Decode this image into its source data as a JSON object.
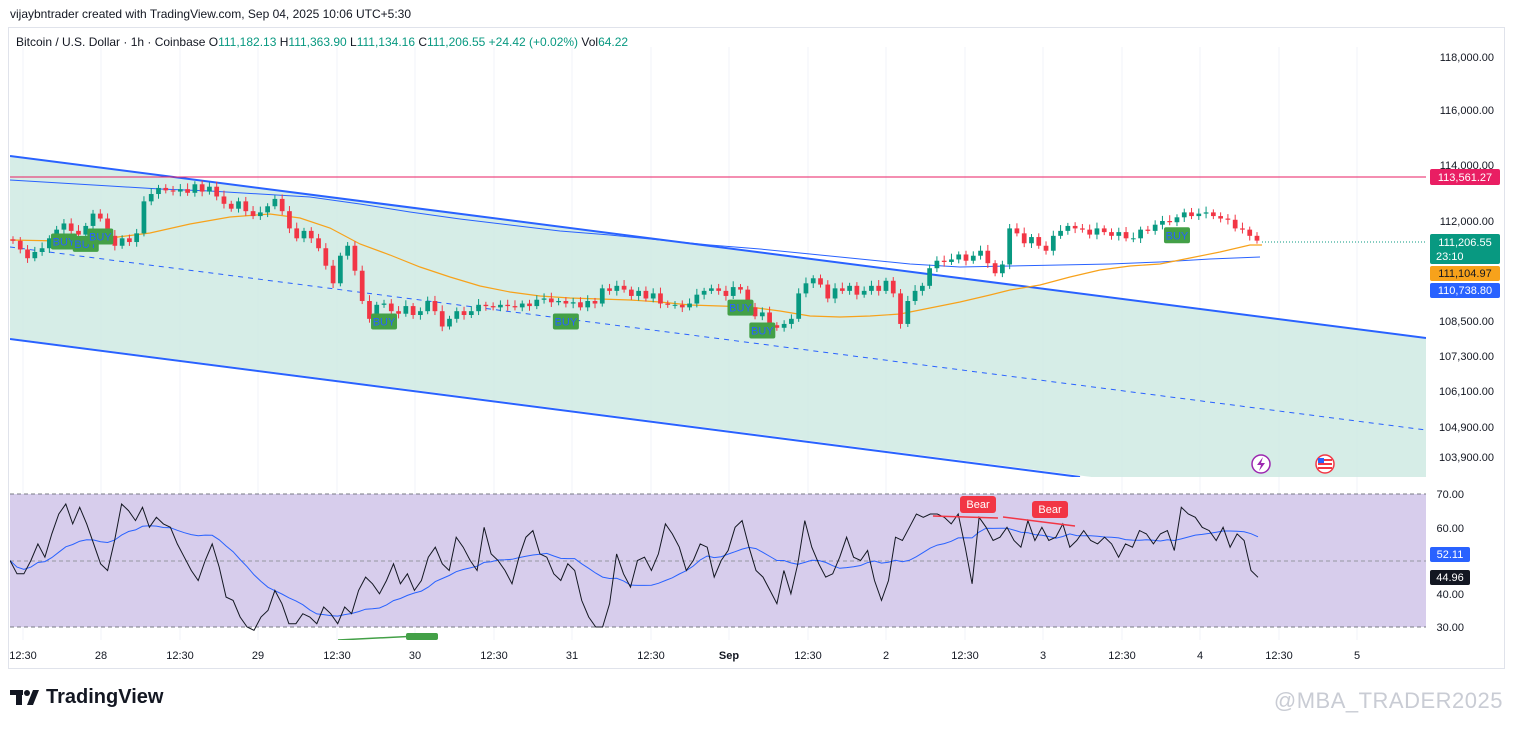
{
  "header": {
    "text": "vijaybntrader created with TradingView.com, Sep 04, 2025 10:06 UTC+5:30"
  },
  "legend": {
    "symbol": "Bitcoin / U.S. Dollar · 1h · Coinbase",
    "o_label": "O",
    "o_value": "111,182.13",
    "h_label": "H",
    "h_value": "111,363.90",
    "l_label": "L",
    "l_value": "111,134.16",
    "c_label": "C",
    "c_value": "111,206.55",
    "change": "+24.42 (+0.02%)",
    "vol_label": "Vol",
    "vol_value": "64.22"
  },
  "price_badges": {
    "resistance": "113,561.27",
    "last": "111,206.55",
    "countdown": "23:10",
    "ma_orange": "111,104.97",
    "ma_blue": "110,738.80",
    "rsi_ma": "52.11",
    "rsi": "44.96"
  },
  "signals": {
    "buy": "BUY",
    "bear": "Bear",
    "bull": "Bull"
  },
  "footer": {
    "brand": "TradingView",
    "watermark": "@MBA_TRADER2025"
  },
  "colors": {
    "up": "#089981",
    "down": "#f23645",
    "channel_line": "#2962ff",
    "channel_fill": "#cfeae3",
    "ma_orange": "#f7a21b",
    "ma_blue": "#2962ff",
    "resistance": "#e91e63",
    "rsi_bg": "#d7cdec",
    "buy_badge": "#43a047",
    "bear_badge": "#f23645",
    "last_price": "#089981",
    "rsi_ma_badge": "#2962ff",
    "rsi_badge": "#131722"
  },
  "icons": [
    "lightning-icon",
    "us-flag-icon",
    "tradingview-logo-icon"
  ],
  "chart_data": [
    {
      "type": "candlestick",
      "title": "Bitcoin / U.S. Dollar · 1h · Coinbase",
      "x_tick_labels": [
        "12:30",
        "28",
        "12:30",
        "29",
        "12:30",
        "30",
        "12:30",
        "31",
        "12:30",
        "Sep",
        "12:30",
        "2",
        "12:30",
        "3",
        "12:30",
        "4",
        "12:30",
        "5"
      ],
      "y_tick_labels": [
        "118,000.00",
        "116,000.00",
        "114,000.00",
        "112,000.00",
        "108,500.00",
        "107,300.00",
        "106,100.00",
        "104,900.00",
        "103,900.00"
      ],
      "scale": "log",
      "close": [
        111200,
        110850,
        110500,
        110750,
        110900,
        111300,
        111650,
        111900,
        111600,
        111450,
        111800,
        112300,
        112100,
        111400,
        111000,
        111300,
        111150,
        111500,
        112800,
        113100,
        113350,
        113250,
        113200,
        113300,
        113150,
        113500,
        113200,
        113400,
        113000,
        112700,
        112500,
        112800,
        112400,
        112200,
        112350,
        112600,
        112900,
        112400,
        111700,
        111300,
        111600,
        111300,
        110900,
        110200,
        109500,
        110600,
        111000,
        110000,
        108800,
        108100,
        108650,
        108700,
        108400,
        108300,
        108600,
        108250,
        108400,
        108800,
        108400,
        107800,
        108100,
        108400,
        108250,
        108400,
        108650,
        108600,
        108550,
        108650,
        108600,
        108550,
        108700,
        108600,
        108850,
        108900,
        108750,
        108800,
        108700,
        108750,
        108550,
        108800,
        108700,
        109300,
        109200,
        109400,
        109250,
        109000,
        109200,
        108900,
        109100,
        108700,
        108650,
        108650,
        108550,
        108700,
        109050,
        109200,
        109300,
        109200,
        109000,
        109350,
        109250,
        108550,
        108200,
        108350,
        107850,
        107750,
        107900,
        108100,
        109100,
        109500,
        109700,
        109450,
        108900,
        109300,
        109200,
        109400,
        109050,
        109200,
        109400,
        109200,
        109600,
        109100,
        107900,
        108800,
        109200,
        109400,
        110100,
        110400,
        110350,
        110450,
        110650,
        110400,
        110600,
        110800,
        110300,
        109900,
        110250,
        111700,
        111500,
        111100,
        111350,
        111000,
        110800,
        111400,
        111600,
        111800,
        111700,
        111650,
        111450,
        111700,
        111550,
        111400,
        111550,
        111300,
        111300,
        111650,
        111600,
        111850,
        112000,
        111950,
        112150,
        112350,
        112200,
        112300,
        112350,
        112200,
        112100,
        112050,
        111700,
        111650,
        111400,
        111206.55
      ],
      "moving_averages": [
        {
          "values": [
            111104.97
          ],
          "color": "#f7a21b"
        },
        {
          "values": [
            110738.8
          ],
          "color": "#2962ff"
        }
      ],
      "horizontal_lines": [
        {
          "value": 113561.27,
          "color": "#e91e63"
        }
      ],
      "last_price": 111206.55,
      "signals": [
        {
          "label": "BUY",
          "index": 7
        },
        {
          "label": "BUY",
          "index": 10
        },
        {
          "label": "BUY",
          "index": 12
        },
        {
          "label": "BUY",
          "index": 51
        },
        {
          "label": "BUY",
          "index": 76
        },
        {
          "label": "BUY",
          "index": 100
        },
        {
          "label": "BUY",
          "index": 103
        },
        {
          "label": "BUY",
          "index": 160
        }
      ]
    },
    {
      "type": "line",
      "y_tick_labels": [
        "70.00",
        "60.00",
        "40.00",
        "30.00"
      ],
      "ylim": [
        30,
        70
      ],
      "series": [
        {
          "values": [
            50,
            46,
            46,
            50,
            55,
            51,
            58,
            64,
            67,
            61,
            66,
            61,
            55,
            49,
            47,
            56,
            67,
            65,
            62,
            66,
            60,
            63,
            61,
            60,
            55,
            51,
            47,
            44,
            50,
            55,
            48,
            39,
            38,
            33,
            30,
            29,
            33,
            35,
            41,
            37,
            31,
            31,
            34,
            33,
            31,
            36,
            34,
            31,
            36,
            34,
            41,
            45,
            43,
            40,
            44,
            49,
            43,
            46,
            41,
            44,
            51,
            54,
            49,
            47,
            57,
            54,
            50,
            47,
            60,
            52,
            50,
            47,
            43,
            51,
            57,
            59,
            52,
            51,
            46,
            44,
            49,
            47,
            38,
            33,
            30,
            30,
            37,
            52,
            46,
            42,
            50,
            51,
            47,
            52,
            61,
            58,
            54,
            47,
            50,
            55,
            54,
            45,
            50,
            53,
            60,
            62,
            54,
            47,
            45,
            41,
            37,
            47,
            40,
            49,
            62,
            54,
            49,
            45,
            46,
            51,
            57,
            51,
            50,
            53,
            44,
            38,
            44,
            57,
            56,
            60,
            64,
            63,
            64,
            64,
            63,
            61,
            64,
            54,
            43,
            63,
            60,
            56,
            57,
            60,
            56,
            54,
            62,
            56,
            60,
            56,
            57,
            61,
            54,
            56,
            59,
            56,
            55,
            57,
            55,
            51,
            55,
            54,
            59,
            58,
            55,
            58,
            59,
            53,
            66,
            64,
            63,
            60,
            59,
            56,
            60,
            54,
            58,
            56,
            47,
            44.96
          ]
        },
        {
          "values": [
            52.11
          ]
        }
      ],
      "signals": [
        {
          "label": "Bear",
          "index": 124
        },
        {
          "label": "Bear",
          "index": 148
        },
        {
          "label": "Bull",
          "index": 52
        }
      ]
    }
  ]
}
